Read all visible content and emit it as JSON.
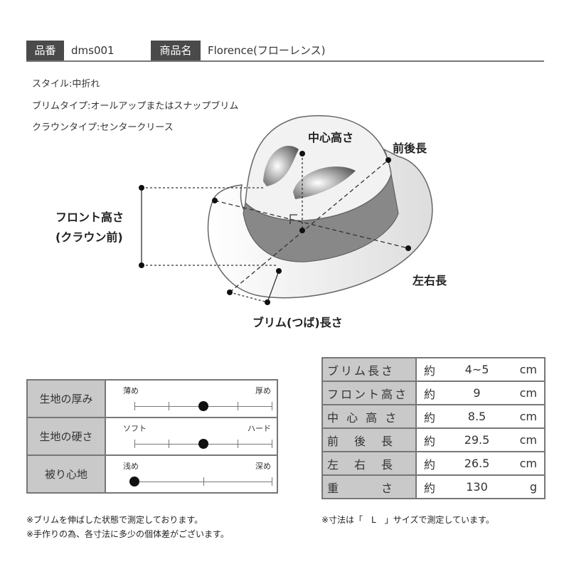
{
  "header": {
    "code_label": "品番",
    "code_value": "dms001",
    "name_label": "商品名",
    "name_value": "Florence(フローレンス)"
  },
  "info": [
    "スタイル:中折れ",
    "ブリムタイプ:オールアップまたはスナップブリム",
    "クラウンタイプ:センタークリース"
  ],
  "diagram": {
    "center_height": "中心高さ",
    "front_back": "前後長",
    "front_height_1": "フロント高さ",
    "front_height_2": "(クラウン前)",
    "left_right": "左右長",
    "brim_length": "ブリム(つば)長さ"
  },
  "feel": [
    {
      "label": "生地の厚み",
      "min": "薄め",
      "max": "厚め",
      "ticks": 5,
      "value": 0.5
    },
    {
      "label": "生地の硬さ",
      "min": "ソフト",
      "max": "ハード",
      "ticks": 5,
      "value": 0.5
    },
    {
      "label": "被り心地",
      "min": "浅め",
      "max": "深め",
      "ticks": 3,
      "value": 0
    }
  ],
  "sizes": [
    {
      "label": "ブリム長さ",
      "approx": "約",
      "value": "4~5",
      "unit": "cm"
    },
    {
      "label": "フロント高さ",
      "approx": "約",
      "value": "9",
      "unit": "cm"
    },
    {
      "label": "中 心 高 さ",
      "approx": "約",
      "value": "8.5",
      "unit": "cm"
    },
    {
      "label": "前　後　長",
      "approx": "約",
      "value": "29.5",
      "unit": "cm"
    },
    {
      "label": "左　右　長",
      "approx": "約",
      "value": "26.5",
      "unit": "cm"
    },
    {
      "label": "重　　　さ",
      "approx": "約",
      "value": "130",
      "unit": "g"
    }
  ],
  "notes": {
    "left_1": "※ブリムを伸ばした状態で測定しております。",
    "left_2": "※手作りの為、各寸法に多少の個体差がございます。",
    "right": "※寸法は「　L　」サイズで測定しています。"
  }
}
